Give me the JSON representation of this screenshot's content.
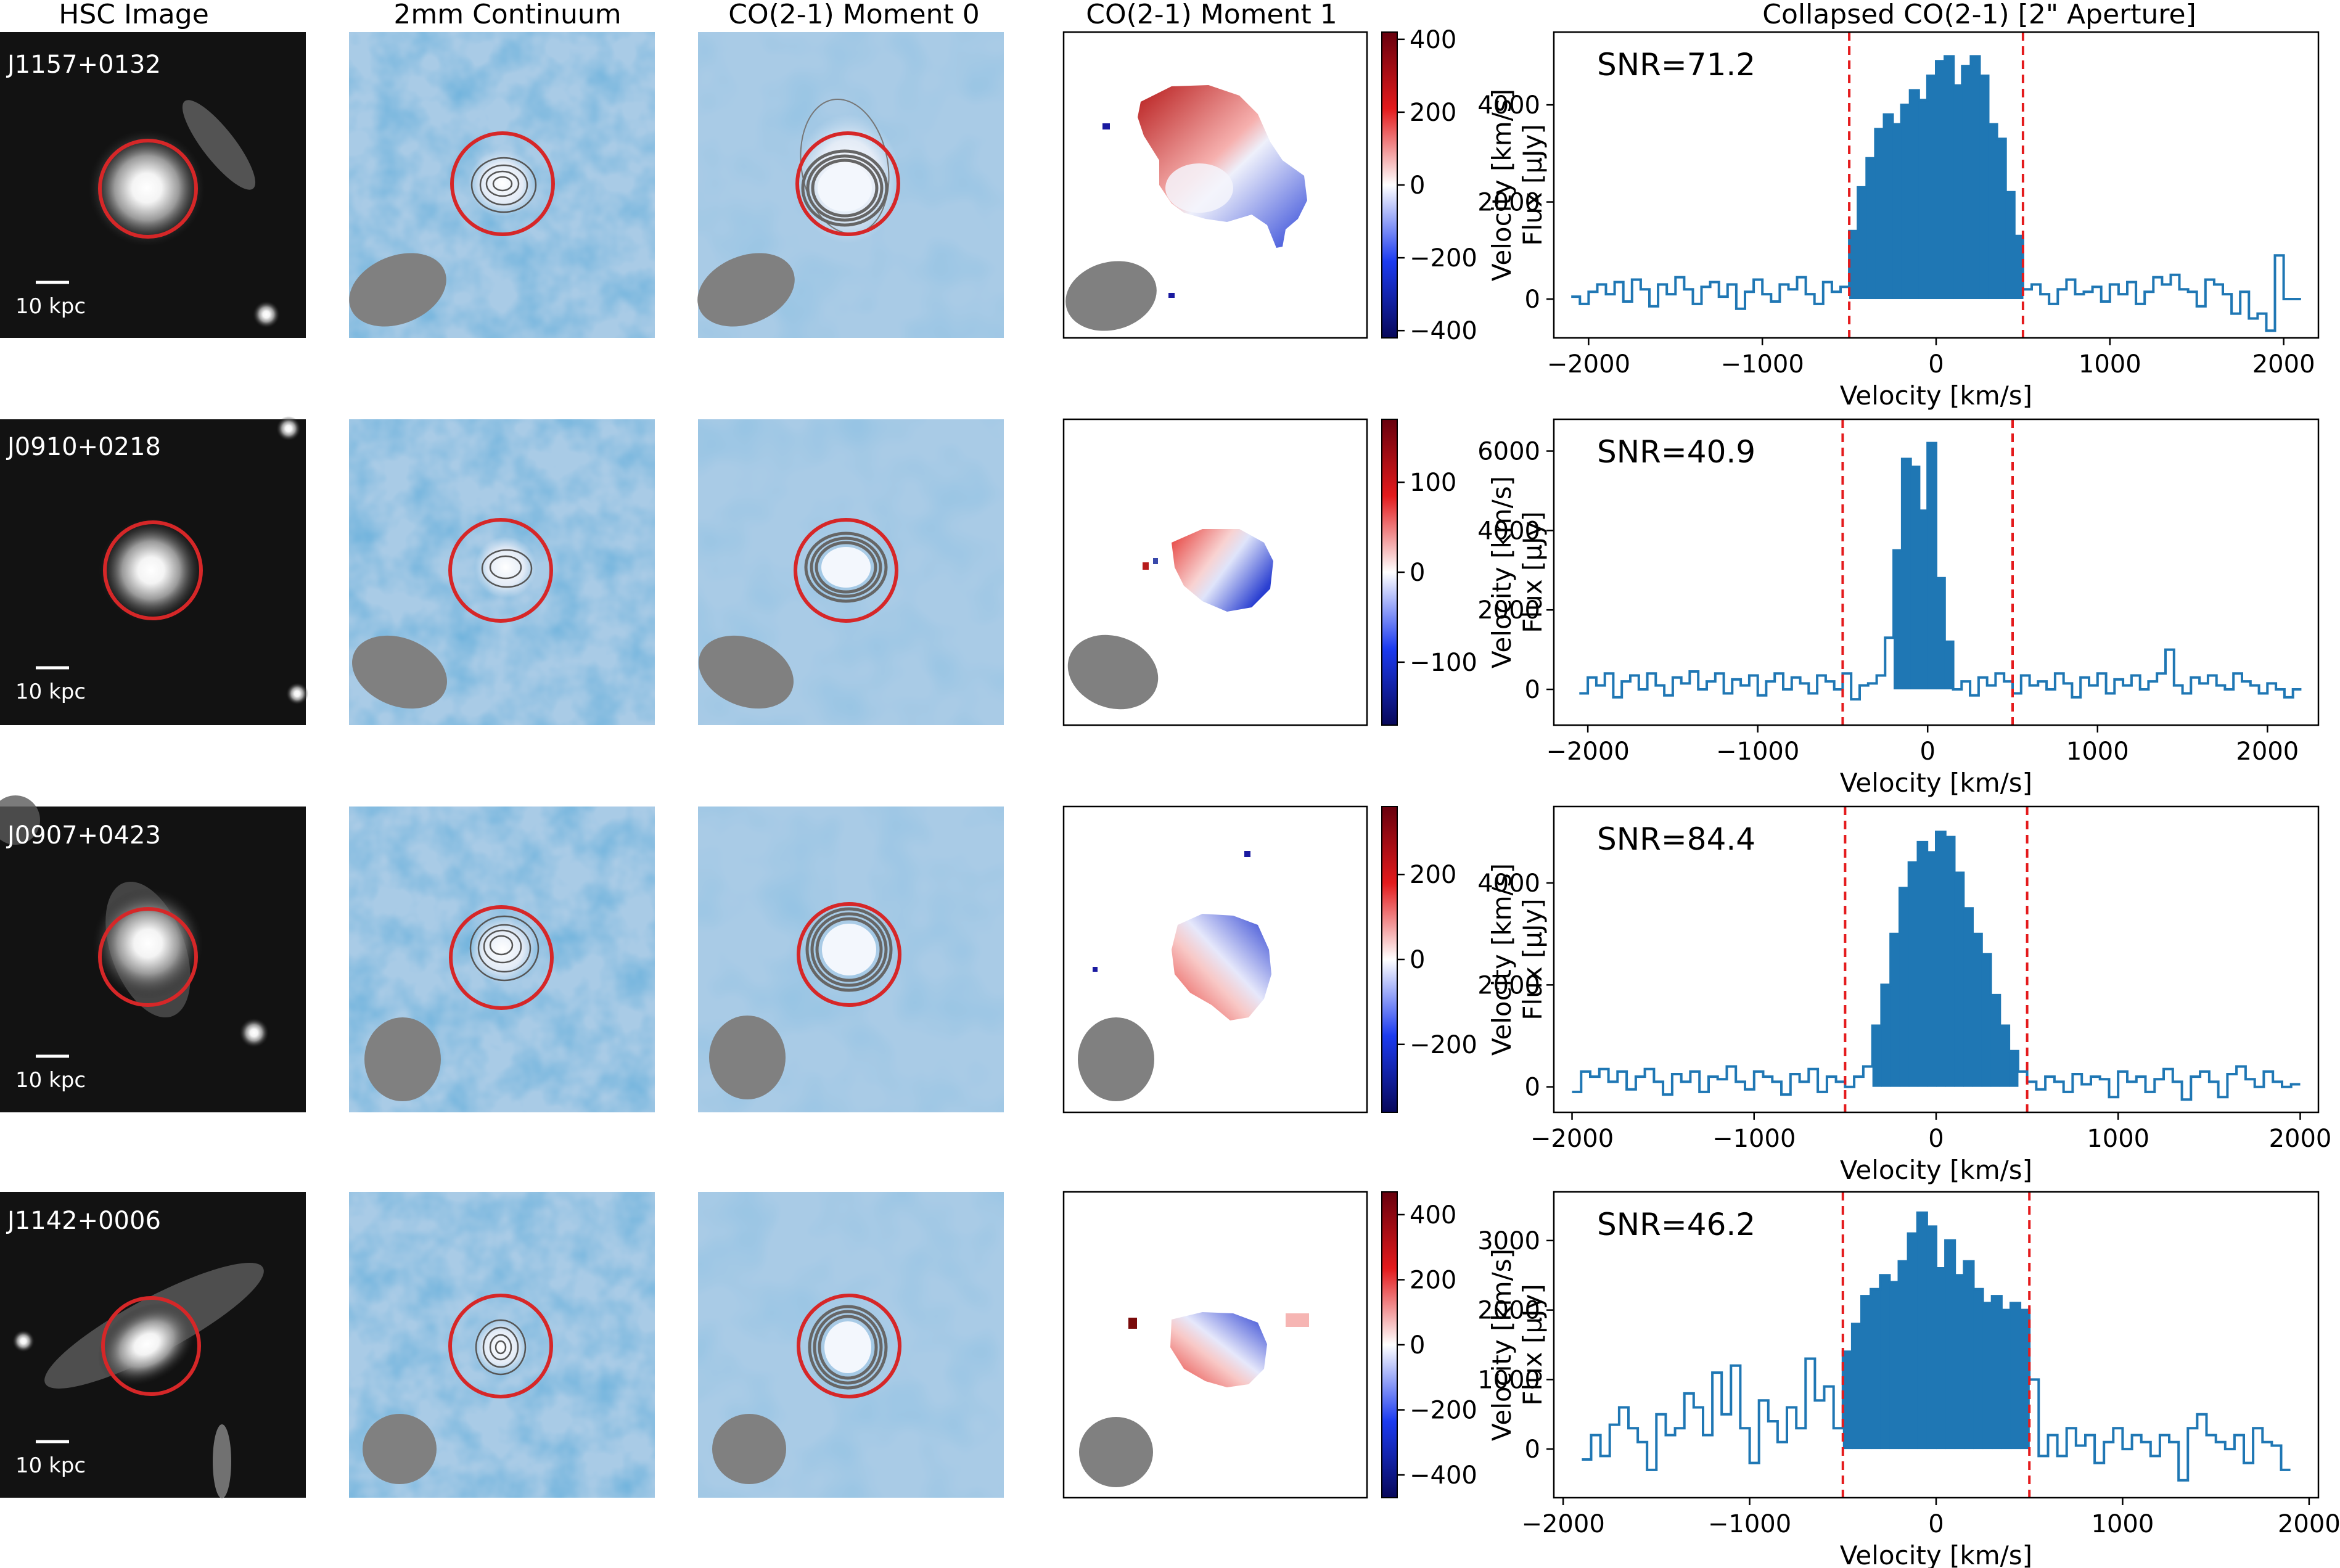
{
  "column_titles": {
    "hsc": "HSC Image",
    "continuum": "2mm Continuum",
    "mom0": "CO(2-1) Moment 0",
    "mom1": "CO(2-1) Moment 1",
    "spectrum": "Collapsed CO(2-1) [2\" Aperture]"
  },
  "scale_bar_label": "10 kpc",
  "colorbar_label": "Velocity [km/s]",
  "spectrum_xlabel": "Velocity [km/s]",
  "spectrum_ylabel": "Flux [μJy]",
  "colors": {
    "aperture_circle": "#d62728",
    "bar": "#1f77b4",
    "marker_line": "#e41a1c",
    "beam": "#808080",
    "map_bg": "#a9cbe6"
  },
  "chart_data": [
    {
      "type": "bar",
      "object": "J1157+0132",
      "title": "Collapsed CO(2-1) [2\" Aperture]",
      "xlabel": "Velocity [km/s]",
      "ylabel": "Flux [μJy]",
      "annotation": "SNR=71.2",
      "xlim": [
        -2200,
        2200
      ],
      "ylim": [
        -800,
        5500
      ],
      "xticks": [
        -2000,
        -1000,
        0,
        1000,
        2000
      ],
      "xtick_labels": [
        "−2000",
        "−1000",
        "0",
        "1000",
        "2000"
      ],
      "yticks": [
        0,
        2000,
        4000
      ],
      "ytick_labels": [
        "0",
        "2000",
        "4000"
      ],
      "vlines": [
        -500,
        500
      ],
      "signal_range": [
        -500,
        500
      ],
      "colorbar": {
        "range": [
          -420,
          420
        ],
        "ticks": [
          400,
          200,
          0,
          -200,
          -400
        ],
        "tick_labels": [
          "400",
          "200",
          "0",
          "−200",
          "−400"
        ]
      },
      "x": [
        -2100,
        -2050,
        -2000,
        -1950,
        -1900,
        -1850,
        -1800,
        -1750,
        -1700,
        -1650,
        -1600,
        -1550,
        -1500,
        -1450,
        -1400,
        -1350,
        -1300,
        -1250,
        -1200,
        -1150,
        -1100,
        -1050,
        -1000,
        -950,
        -900,
        -850,
        -800,
        -750,
        -700,
        -650,
        -600,
        -550,
        -500,
        -450,
        -400,
        -350,
        -300,
        -250,
        -200,
        -150,
        -100,
        -50,
        0,
        50,
        100,
        150,
        200,
        250,
        300,
        350,
        400,
        450,
        500,
        550,
        600,
        650,
        700,
        750,
        800,
        850,
        900,
        950,
        1000,
        1050,
        1100,
        1150,
        1200,
        1250,
        1300,
        1350,
        1400,
        1450,
        1500,
        1550,
        1600,
        1650,
        1700,
        1750,
        1800,
        1850,
        1900,
        1950,
        2000,
        2050
      ],
      "values": [
        50,
        -100,
        150,
        300,
        100,
        350,
        -50,
        400,
        200,
        -150,
        300,
        100,
        450,
        200,
        -100,
        250,
        350,
        50,
        300,
        -200,
        150,
        400,
        100,
        -50,
        300,
        200,
        450,
        100,
        -100,
        350,
        150,
        250,
        1400,
        2300,
        2900,
        3500,
        3800,
        3600,
        4000,
        4300,
        4100,
        4600,
        4900,
        5000,
        4400,
        4800,
        5000,
        4600,
        3600,
        3300,
        2200,
        1300,
        200,
        300,
        100,
        -100,
        200,
        400,
        100,
        150,
        250,
        -50,
        300,
        100,
        350,
        -100,
        150,
        450,
        300,
        500,
        200,
        150,
        -150,
        400,
        300,
        100,
        -300,
        150,
        -400,
        -300,
        -650,
        900,
        0,
        0
      ]
    },
    {
      "type": "bar",
      "object": "J0910+0218",
      "title": "",
      "xlabel": "Velocity [km/s]",
      "ylabel": "Flux [μJy]",
      "annotation": "SNR=40.9",
      "xlim": [
        -2200,
        2300
      ],
      "ylim": [
        -900,
        6800
      ],
      "xticks": [
        -2000,
        -1000,
        0,
        1000,
        2000
      ],
      "xtick_labels": [
        "−2000",
        "−1000",
        "0",
        "1000",
        "2000"
      ],
      "yticks": [
        0,
        2000,
        4000,
        6000
      ],
      "ytick_labels": [
        "0",
        "2000",
        "4000",
        "6000"
      ],
      "vlines": [
        -500,
        500
      ],
      "signal_range": [
        -200,
        200
      ],
      "colorbar": {
        "range": [
          -170,
          170
        ],
        "ticks": [
          100,
          0,
          -100
        ],
        "tick_labels": [
          "100",
          "0",
          "−100"
        ]
      },
      "x": [
        -2050,
        -2000,
        -1950,
        -1900,
        -1850,
        -1800,
        -1750,
        -1700,
        -1650,
        -1600,
        -1550,
        -1500,
        -1450,
        -1400,
        -1350,
        -1300,
        -1250,
        -1200,
        -1150,
        -1100,
        -1050,
        -1000,
        -950,
        -900,
        -850,
        -800,
        -750,
        -700,
        -650,
        -600,
        -550,
        -500,
        -450,
        -400,
        -350,
        -300,
        -250,
        -200,
        -150,
        -100,
        -50,
        0,
        50,
        100,
        150,
        200,
        250,
        300,
        350,
        400,
        450,
        500,
        550,
        600,
        650,
        700,
        750,
        800,
        850,
        900,
        950,
        1000,
        1050,
        1100,
        1150,
        1200,
        1250,
        1300,
        1350,
        1400,
        1450,
        1500,
        1550,
        1600,
        1650,
        1700,
        1750,
        1800,
        1850,
        1900,
        1950,
        2000,
        2050,
        2100,
        2150
      ],
      "values": [
        -100,
        300,
        100,
        400,
        -200,
        200,
        350,
        0,
        400,
        100,
        -150,
        300,
        150,
        450,
        0,
        200,
        400,
        -100,
        250,
        100,
        350,
        -150,
        200,
        400,
        0,
        300,
        150,
        -100,
        350,
        200,
        0,
        400,
        -250,
        100,
        150,
        350,
        1300,
        3500,
        5800,
        5600,
        4500,
        6200,
        2800,
        1200,
        0,
        200,
        -150,
        300,
        100,
        400,
        200,
        -100,
        350,
        100,
        200,
        0,
        400,
        150,
        -200,
        300,
        100,
        400,
        -100,
        250,
        100,
        350,
        0,
        200,
        400,
        1000,
        100,
        -100,
        300,
        150,
        350,
        100,
        0,
        400,
        200,
        100,
        -100,
        150,
        0,
        -200,
        0
      ]
    },
    {
      "type": "bar",
      "object": "J0907+0423",
      "title": "",
      "xlabel": "Velocity [km/s]",
      "ylabel": "Flux [μJy]",
      "annotation": "SNR=84.4",
      "xlim": [
        -2100,
        2100
      ],
      "ylim": [
        -500,
        5500
      ],
      "xticks": [
        -2000,
        -1000,
        0,
        1000,
        2000
      ],
      "xtick_labels": [
        "−2000",
        "−1000",
        "0",
        "1000",
        "2000"
      ],
      "yticks": [
        0,
        2000,
        4000
      ],
      "ytick_labels": [
        "0",
        "2000",
        "4000"
      ],
      "vlines": [
        -500,
        500
      ],
      "signal_range": [
        -350,
        450
      ],
      "colorbar": {
        "range": [
          -360,
          360
        ],
        "ticks": [
          200,
          0,
          -200
        ],
        "tick_labels": [
          "200",
          "0",
          "−200"
        ]
      },
      "x": [
        -2000,
        -1950,
        -1900,
        -1850,
        -1800,
        -1750,
        -1700,
        -1650,
        -1600,
        -1550,
        -1500,
        -1450,
        -1400,
        -1350,
        -1300,
        -1250,
        -1200,
        -1150,
        -1100,
        -1050,
        -1000,
        -950,
        -900,
        -850,
        -800,
        -750,
        -700,
        -650,
        -600,
        -550,
        -500,
        -450,
        -400,
        -350,
        -300,
        -250,
        -200,
        -150,
        -100,
        -50,
        0,
        50,
        100,
        150,
        200,
        250,
        300,
        350,
        400,
        450,
        500,
        550,
        600,
        650,
        700,
        750,
        800,
        850,
        900,
        950,
        1000,
        1050,
        1100,
        1150,
        1200,
        1250,
        1300,
        1350,
        1400,
        1450,
        1500,
        1550,
        1600,
        1650,
        1700,
        1750,
        1800,
        1850,
        1900,
        1950
      ],
      "values": [
        -100,
        300,
        200,
        350,
        100,
        300,
        -50,
        200,
        350,
        100,
        -150,
        250,
        100,
        300,
        -100,
        200,
        150,
        400,
        100,
        -50,
        300,
        200,
        100,
        -150,
        250,
        100,
        350,
        -100,
        200,
        100,
        0,
        200,
        400,
        1200,
        2000,
        3000,
        3900,
        4400,
        4800,
        4600,
        5000,
        4900,
        4200,
        3500,
        3000,
        2600,
        1800,
        1200,
        700,
        300,
        100,
        -50,
        200,
        100,
        -100,
        250,
        50,
        200,
        150,
        -200,
        300,
        100,
        200,
        -100,
        150,
        350,
        100,
        -250,
        200,
        300,
        100,
        -200,
        250,
        400,
        150,
        0,
        300,
        100,
        0,
        50
      ]
    },
    {
      "type": "bar",
      "object": "J1142+0006",
      "title": "",
      "xlabel": "Velocity [km/s]",
      "ylabel": "Flux [μJy]",
      "annotation": "SNR=46.2",
      "xlim": [
        -2050,
        2050
      ],
      "ylim": [
        -700,
        3700
      ],
      "xticks": [
        -2000,
        -1000,
        0,
        1000,
        2000
      ],
      "xtick_labels": [
        "−2000",
        "−1000",
        "0",
        "1000",
        "2000"
      ],
      "yticks": [
        0,
        1000,
        2000,
        3000
      ],
      "ytick_labels": [
        "0",
        "1000",
        "2000",
        "3000"
      ],
      "vlines": [
        -500,
        500
      ],
      "signal_range": [
        -500,
        480
      ],
      "colorbar": {
        "range": [
          -470,
          470
        ],
        "ticks": [
          400,
          200,
          0,
          -200,
          -400
        ],
        "tick_labels": [
          "400",
          "200",
          "0",
          "−200",
          "−400"
        ]
      },
      "x": [
        -1900,
        -1850,
        -1800,
        -1750,
        -1700,
        -1650,
        -1600,
        -1550,
        -1500,
        -1450,
        -1400,
        -1350,
        -1300,
        -1250,
        -1200,
        -1150,
        -1100,
        -1050,
        -1000,
        -950,
        -900,
        -850,
        -800,
        -750,
        -700,
        -650,
        -600,
        -550,
        -500,
        -450,
        -400,
        -350,
        -300,
        -250,
        -200,
        -150,
        -100,
        -50,
        0,
        50,
        100,
        150,
        200,
        250,
        300,
        350,
        400,
        450,
        500,
        550,
        600,
        650,
        700,
        750,
        800,
        850,
        900,
        950,
        1000,
        1050,
        1100,
        1150,
        1200,
        1250,
        1300,
        1350,
        1400,
        1450,
        1500,
        1550,
        1600,
        1650,
        1700,
        1750,
        1800,
        1850
      ],
      "values": [
        -150,
        200,
        -100,
        350,
        600,
        300,
        100,
        -300,
        500,
        200,
        300,
        800,
        600,
        200,
        1100,
        500,
        1200,
        300,
        -200,
        700,
        400,
        100,
        600,
        300,
        1300,
        700,
        900,
        300,
        1400,
        1800,
        2200,
        2300,
        2500,
        2400,
        2700,
        3100,
        3400,
        3200,
        2600,
        3000,
        2500,
        2700,
        2300,
        2100,
        2200,
        2000,
        2100,
        2000,
        1000,
        -100,
        200,
        -100,
        300,
        50,
        200,
        -200,
        100,
        300,
        0,
        200,
        100,
        -100,
        200,
        100,
        -450,
        300,
        500,
        200,
        100,
        0,
        200,
        -200,
        300,
        100,
        50,
        -300
      ]
    }
  ]
}
